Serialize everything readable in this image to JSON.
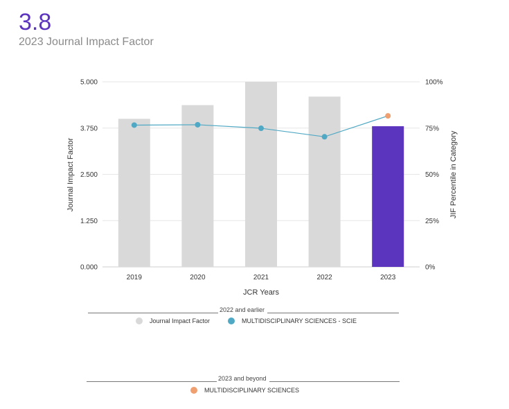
{
  "header": {
    "value": "3.8",
    "caption": "2023 Journal Impact Factor"
  },
  "colors": {
    "accent": "#5c35bf",
    "bar_grey": "#d9d9d9",
    "line": "#4fa8c4",
    "point_teal": "#4fa8c4",
    "point_orange": "#f0a070"
  },
  "chart_data": {
    "type": "bar",
    "xlabel": "JCR Years",
    "ylabel": "Journal Impact Factor",
    "y2label": "JIF Percentile in Category",
    "categories": [
      "2019",
      "2020",
      "2021",
      "2022",
      "2023"
    ],
    "ylim": [
      0,
      5
    ],
    "yticks": [
      "0.000",
      "1.250",
      "2.500",
      "3.750",
      "5.000"
    ],
    "y2lim": [
      0,
      100
    ],
    "y2ticks": [
      "0%",
      "25%",
      "50%",
      "75%",
      "100%"
    ],
    "series": [
      {
        "name": "Journal Impact Factor",
        "kind": "bar",
        "values": [
          4.0,
          4.37,
          5.0,
          4.6,
          3.8
        ],
        "highlight_index": 4
      },
      {
        "name": "MULTIDISCIPLINARY SCIENCES - SCIE",
        "kind": "line",
        "axis": "right",
        "values": [
          76.6,
          76.8,
          74.9,
          70.3,
          null
        ]
      },
      {
        "name": "MULTIDISCIPLINARY SCIENCES",
        "kind": "point",
        "axis": "right",
        "values": [
          null,
          null,
          null,
          null,
          81.6
        ]
      }
    ],
    "legend_groups": [
      {
        "title": "2022 and earlier",
        "items": [
          "Journal Impact Factor",
          "MULTIDISCIPLINARY SCIENCES - SCIE"
        ]
      },
      {
        "title": "2023 and beyond",
        "items": [
          "MULTIDISCIPLINARY SCIENCES"
        ]
      }
    ]
  }
}
